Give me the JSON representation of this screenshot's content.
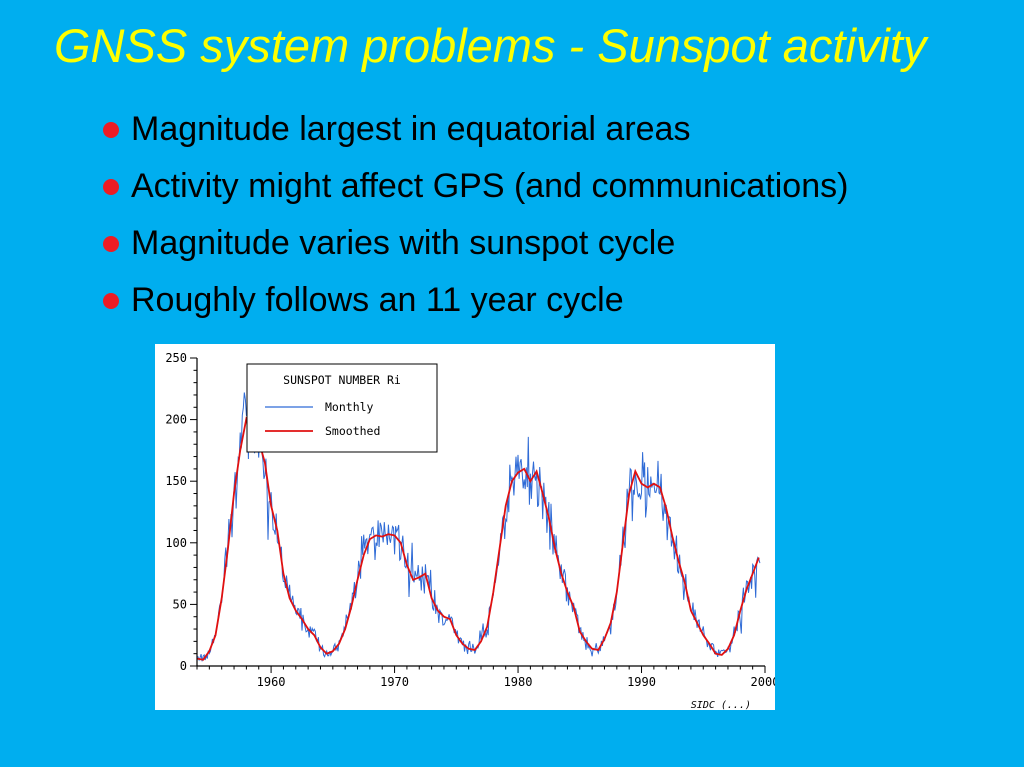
{
  "slide": {
    "title": "GNSS system problems - Sunspot activity",
    "bullets": [
      "Magnitude largest in equatorial areas",
      "Activity might affect GPS (and communications)",
      "Magnitude varies with sunspot cycle",
      "Roughly follows an 11 year cycle"
    ],
    "colors": {
      "background": "#00AEEF",
      "title": "#FFFF00",
      "bullet_marker": "#ED1C24",
      "body_text": "#000000"
    }
  },
  "chart_data": {
    "type": "line",
    "title": "SUNSPOT NUMBER Ri",
    "xlabel": "",
    "ylabel": "",
    "xlim": [
      1954,
      2000
    ],
    "ylim": [
      0,
      250
    ],
    "x_ticks": [
      1960,
      1970,
      1980,
      1990,
      2000
    ],
    "y_ticks": [
      0,
      50,
      100,
      150,
      200,
      250
    ],
    "x_minor_step": 1,
    "y_minor_step": 10,
    "grid": false,
    "legend_position": "top-left-inside",
    "footnote": "SIDC (...)",
    "series": [
      {
        "name": "Monthly",
        "color": "#2F6BD6",
        "style": "noisy-monthly",
        "derived_from": "Smoothed",
        "noise_seed": 12345,
        "noise_base": 4,
        "noise_scale": 0.17,
        "x_end": 1999.6
      },
      {
        "name": "Smoothed",
        "color": "#E01010",
        "points": [
          [
            1954.0,
            6
          ],
          [
            1954.5,
            5
          ],
          [
            1955.0,
            12
          ],
          [
            1955.5,
            25
          ],
          [
            1956.0,
            55
          ],
          [
            1956.5,
            95
          ],
          [
            1957.0,
            140
          ],
          [
            1957.5,
            175
          ],
          [
            1958.0,
            201
          ],
          [
            1958.5,
            195
          ],
          [
            1959.0,
            183
          ],
          [
            1959.5,
            165
          ],
          [
            1960.0,
            130
          ],
          [
            1960.5,
            110
          ],
          [
            1961.0,
            75
          ],
          [
            1961.5,
            55
          ],
          [
            1962.0,
            45
          ],
          [
            1962.5,
            38
          ],
          [
            1963.0,
            30
          ],
          [
            1963.5,
            25
          ],
          [
            1964.0,
            15
          ],
          [
            1964.5,
            10
          ],
          [
            1965.0,
            12
          ],
          [
            1965.5,
            18
          ],
          [
            1966.0,
            30
          ],
          [
            1966.5,
            48
          ],
          [
            1967.0,
            70
          ],
          [
            1967.5,
            90
          ],
          [
            1968.0,
            103
          ],
          [
            1968.5,
            106
          ],
          [
            1969.0,
            105
          ],
          [
            1969.5,
            107
          ],
          [
            1970.0,
            106
          ],
          [
            1970.5,
            100
          ],
          [
            1971.0,
            82
          ],
          [
            1971.5,
            70
          ],
          [
            1972.0,
            72
          ],
          [
            1972.5,
            75
          ],
          [
            1973.0,
            55
          ],
          [
            1973.5,
            45
          ],
          [
            1974.0,
            40
          ],
          [
            1974.5,
            38
          ],
          [
            1975.0,
            25
          ],
          [
            1975.5,
            18
          ],
          [
            1976.0,
            14
          ],
          [
            1976.5,
            13
          ],
          [
            1977.0,
            20
          ],
          [
            1977.5,
            32
          ],
          [
            1978.0,
            60
          ],
          [
            1978.5,
            95
          ],
          [
            1979.0,
            130
          ],
          [
            1979.5,
            150
          ],
          [
            1980.0,
            157
          ],
          [
            1980.5,
            160
          ],
          [
            1981.0,
            150
          ],
          [
            1981.5,
            158
          ],
          [
            1982.0,
            140
          ],
          [
            1982.5,
            120
          ],
          [
            1983.0,
            95
          ],
          [
            1983.5,
            75
          ],
          [
            1984.0,
            60
          ],
          [
            1984.5,
            48
          ],
          [
            1985.0,
            28
          ],
          [
            1985.5,
            20
          ],
          [
            1986.0,
            14
          ],
          [
            1986.5,
            13
          ],
          [
            1987.0,
            22
          ],
          [
            1987.5,
            35
          ],
          [
            1988.0,
            60
          ],
          [
            1988.5,
            100
          ],
          [
            1989.0,
            140
          ],
          [
            1989.5,
            158
          ],
          [
            1990.0,
            148
          ],
          [
            1990.5,
            145
          ],
          [
            1991.0,
            148
          ],
          [
            1991.5,
            145
          ],
          [
            1992.0,
            128
          ],
          [
            1992.5,
            105
          ],
          [
            1993.0,
            85
          ],
          [
            1993.5,
            68
          ],
          [
            1994.0,
            45
          ],
          [
            1994.5,
            35
          ],
          [
            1995.0,
            25
          ],
          [
            1995.5,
            18
          ],
          [
            1996.0,
            10
          ],
          [
            1996.5,
            9
          ],
          [
            1997.0,
            14
          ],
          [
            1997.5,
            25
          ],
          [
            1998.0,
            45
          ],
          [
            1998.5,
            62
          ],
          [
            1999.0,
            75
          ],
          [
            1999.5,
            88
          ]
        ]
      }
    ]
  }
}
